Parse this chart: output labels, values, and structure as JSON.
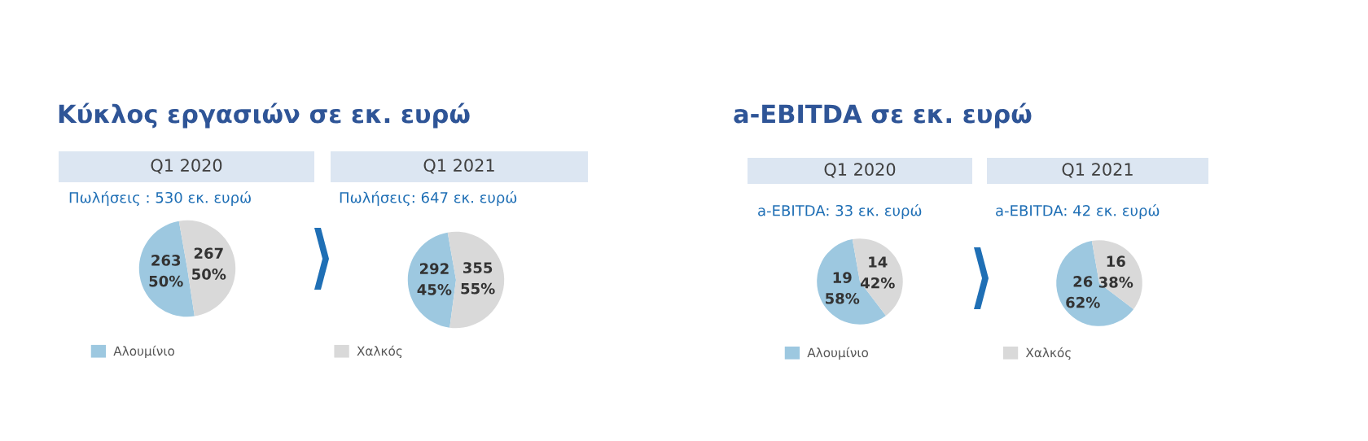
{
  "chart_data": [
    {
      "type": "pie",
      "title": "Q1 2020",
      "subtitle": "Πωλήσεις : 530 εκ. ευρώ",
      "annotations": [
        "Κύκλος εργασιών σε εκ. ευρώ"
      ],
      "categories": [
        "Αλουμίνιο",
        "Χαλκός"
      ],
      "values": [
        263,
        267
      ],
      "value_labels": [
        "263\n50%",
        "267\n50%"
      ],
      "colors": [
        "#9dc8e0",
        "#d9d9d9"
      ],
      "legend": "bottom"
    },
    {
      "type": "pie",
      "title": "Q1 2021",
      "subtitle": "Πωλήσεις: 647 εκ. ευρώ",
      "categories": [
        null,
        null
      ],
      "values": [
        292,
        355
      ],
      "value_labels": [
        "292\n45%",
        "355\n55%"
      ],
      "colors": [
        "#9dc8e0",
        "#d9d9d9"
      ]
    },
    {
      "type": "pie",
      "title": "Q1 2020",
      "subtitle": "a-EBITDA: 33 εκ. ευρώ",
      "annotations": [
        "a-EBITDA σε εκ. ευρώ"
      ],
      "categories": [
        "Αλουμίνιο",
        "Χαλκός"
      ],
      "values": [
        19,
        14
      ],
      "value_labels": [
        "19\n58%",
        "14\n42%"
      ],
      "colors": [
        "#9dc8e0",
        "#d9d9d9"
      ],
      "legend": "bottom"
    },
    {
      "type": "pie",
      "title": "Q1 2021",
      "subtitle": "a-EBITDA: 42 εκ. ευρώ",
      "categories": [
        null,
        null
      ],
      "values": [
        26,
        16
      ],
      "value_labels": [
        "26\n62%",
        "16\n38%"
      ],
      "colors": [
        "#9dc8e0",
        "#d9d9d9"
      ]
    }
  ]
}
